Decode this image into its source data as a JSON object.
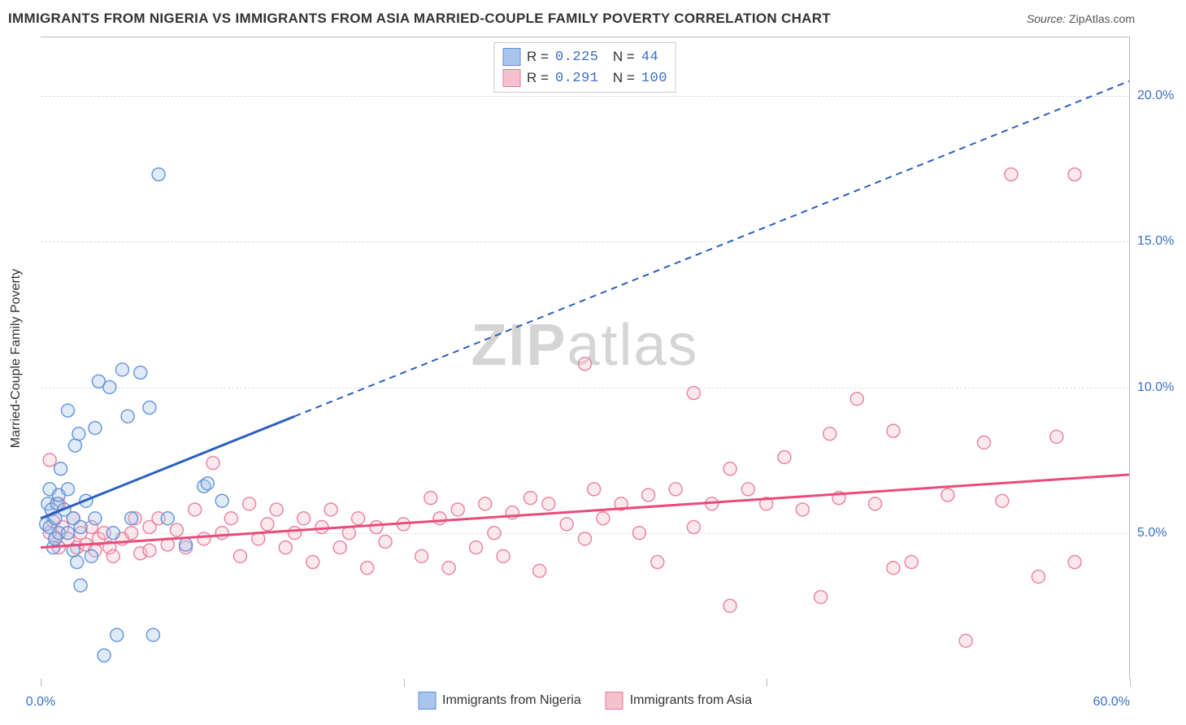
{
  "title": "IMMIGRANTS FROM NIGERIA VS IMMIGRANTS FROM ASIA MARRIED-COUPLE FAMILY POVERTY CORRELATION CHART",
  "source_label": "Source:",
  "source_value": "ZipAtlas.com",
  "watermark": {
    "part1": "ZIP",
    "part2": "atlas"
  },
  "y_axis_label": "Married-Couple Family Poverty",
  "chart": {
    "type": "scatter",
    "xlim": [
      0,
      60
    ],
    "ylim": [
      0,
      22
    ],
    "x_ticks": [
      0,
      20,
      40,
      60
    ],
    "x_tick_labels": {
      "0": "0.0%",
      "60": "60.0%"
    },
    "y_ticks": [
      5,
      10,
      15,
      20
    ],
    "y_tick_labels": {
      "5": "5.0%",
      "10": "10.0%",
      "15": "15.0%",
      "20": "20.0%"
    },
    "grid_color": "#dddddd",
    "background_color": "#ffffff",
    "marker_radius": 8,
    "series": [
      {
        "name": "Immigrants from Nigeria",
        "color_fill": "#a8c6ec",
        "color_stroke": "#5a8fd6",
        "R": "0.225",
        "N": " 44",
        "trend": {
          "x1": 0,
          "y1": 5.5,
          "x2_solid": 14,
          "y2_solid": 9.0,
          "x2_dash": 60,
          "y2_dash": 20.5,
          "stroke": "#2b5fc1",
          "width": 3
        },
        "points": [
          [
            0.3,
            5.3
          ],
          [
            0.4,
            6.0
          ],
          [
            0.5,
            6.5
          ],
          [
            0.5,
            5.2
          ],
          [
            0.6,
            5.8
          ],
          [
            0.7,
            4.5
          ],
          [
            0.8,
            4.8
          ],
          [
            0.8,
            5.5
          ],
          [
            0.9,
            6.0
          ],
          [
            1.0,
            5.0
          ],
          [
            1.0,
            6.3
          ],
          [
            1.1,
            7.2
          ],
          [
            1.3,
            5.8
          ],
          [
            1.5,
            5.0
          ],
          [
            1.5,
            6.5
          ],
          [
            1.5,
            9.2
          ],
          [
            1.8,
            4.4
          ],
          [
            1.8,
            5.5
          ],
          [
            1.9,
            8.0
          ],
          [
            2.0,
            4.0
          ],
          [
            2.1,
            8.4
          ],
          [
            2.2,
            5.2
          ],
          [
            2.2,
            3.2
          ],
          [
            2.5,
            6.1
          ],
          [
            2.8,
            4.2
          ],
          [
            3.0,
            5.5
          ],
          [
            3.0,
            8.6
          ],
          [
            3.2,
            10.2
          ],
          [
            3.5,
            0.8
          ],
          [
            3.8,
            10.0
          ],
          [
            4.0,
            5.0
          ],
          [
            4.2,
            1.5
          ],
          [
            4.5,
            10.6
          ],
          [
            4.8,
            9.0
          ],
          [
            5.0,
            5.5
          ],
          [
            5.5,
            10.5
          ],
          [
            6.0,
            9.3
          ],
          [
            6.2,
            1.5
          ],
          [
            6.5,
            17.3
          ],
          [
            7.0,
            5.5
          ],
          [
            8.0,
            4.6
          ],
          [
            9.0,
            6.6
          ],
          [
            9.2,
            6.7
          ],
          [
            10.0,
            6.1
          ]
        ]
      },
      {
        "name": "Immigrants from Asia",
        "color_fill": "#f5c1cd",
        "color_stroke": "#e77a9a",
        "R": "0.291",
        "N": "100",
        "trend": {
          "x1": 0,
          "y1": 4.5,
          "x2_solid": 60,
          "y2_solid": 7.0,
          "x2_dash": 60,
          "y2_dash": 7.0,
          "stroke": "#e94b7a",
          "width": 3
        },
        "points": [
          [
            0.5,
            5.0
          ],
          [
            0.5,
            7.5
          ],
          [
            0.7,
            5.4
          ],
          [
            0.8,
            4.8
          ],
          [
            1.0,
            4.5
          ],
          [
            1.0,
            6.0
          ],
          [
            1.2,
            5.2
          ],
          [
            1.5,
            4.8
          ],
          [
            1.8,
            5.5
          ],
          [
            2.0,
            4.5
          ],
          [
            2.2,
            5.0
          ],
          [
            2.5,
            4.6
          ],
          [
            2.8,
            5.2
          ],
          [
            3.0,
            4.4
          ],
          [
            3.2,
            4.8
          ],
          [
            3.5,
            5.0
          ],
          [
            3.8,
            4.5
          ],
          [
            4.0,
            4.2
          ],
          [
            4.5,
            4.8
          ],
          [
            5.0,
            5.0
          ],
          [
            5.2,
            5.5
          ],
          [
            5.5,
            4.3
          ],
          [
            6.0,
            5.2
          ],
          [
            6.0,
            4.4
          ],
          [
            6.5,
            5.5
          ],
          [
            7.0,
            4.6
          ],
          [
            7.5,
            5.1
          ],
          [
            8.0,
            4.5
          ],
          [
            8.5,
            5.8
          ],
          [
            9.0,
            4.8
          ],
          [
            9.5,
            7.4
          ],
          [
            10.0,
            5.0
          ],
          [
            10.5,
            5.5
          ],
          [
            11.0,
            4.2
          ],
          [
            11.5,
            6.0
          ],
          [
            12.0,
            4.8
          ],
          [
            12.5,
            5.3
          ],
          [
            13.0,
            5.8
          ],
          [
            13.5,
            4.5
          ],
          [
            14.0,
            5.0
          ],
          [
            14.5,
            5.5
          ],
          [
            15.0,
            4.0
          ],
          [
            15.5,
            5.2
          ],
          [
            16.0,
            5.8
          ],
          [
            16.5,
            4.5
          ],
          [
            17.0,
            5.0
          ],
          [
            17.5,
            5.5
          ],
          [
            18.0,
            3.8
          ],
          [
            18.5,
            5.2
          ],
          [
            19.0,
            4.7
          ],
          [
            20.0,
            5.3
          ],
          [
            21.0,
            4.2
          ],
          [
            21.5,
            6.2
          ],
          [
            22.0,
            5.5
          ],
          [
            22.5,
            3.8
          ],
          [
            23.0,
            5.8
          ],
          [
            24.0,
            4.5
          ],
          [
            24.5,
            6.0
          ],
          [
            25.0,
            5.0
          ],
          [
            25.5,
            4.2
          ],
          [
            26.0,
            5.7
          ],
          [
            27.0,
            6.2
          ],
          [
            27.5,
            3.7
          ],
          [
            28.0,
            6.0
          ],
          [
            29.0,
            5.3
          ],
          [
            30.0,
            10.8
          ],
          [
            30.0,
            4.8
          ],
          [
            30.5,
            6.5
          ],
          [
            31.0,
            5.5
          ],
          [
            32.0,
            6.0
          ],
          [
            33.0,
            5.0
          ],
          [
            33.5,
            6.3
          ],
          [
            34.0,
            4.0
          ],
          [
            35.0,
            6.5
          ],
          [
            36.0,
            9.8
          ],
          [
            36.0,
            5.2
          ],
          [
            37.0,
            6.0
          ],
          [
            38.0,
            7.2
          ],
          [
            38.0,
            2.5
          ],
          [
            39.0,
            6.5
          ],
          [
            40.0,
            6.0
          ],
          [
            41.0,
            7.6
          ],
          [
            42.0,
            5.8
          ],
          [
            43.0,
            2.8
          ],
          [
            43.5,
            8.4
          ],
          [
            44.0,
            6.2
          ],
          [
            45.0,
            9.6
          ],
          [
            46.0,
            6.0
          ],
          [
            47.0,
            3.8
          ],
          [
            47.0,
            8.5
          ],
          [
            48.0,
            4.0
          ],
          [
            50.0,
            6.3
          ],
          [
            51.0,
            1.3
          ],
          [
            52.0,
            8.1
          ],
          [
            53.0,
            6.1
          ],
          [
            53.5,
            17.3
          ],
          [
            55.0,
            3.5
          ],
          [
            56.0,
            8.3
          ],
          [
            57.0,
            17.3
          ],
          [
            57.0,
            4.0
          ]
        ]
      }
    ]
  }
}
